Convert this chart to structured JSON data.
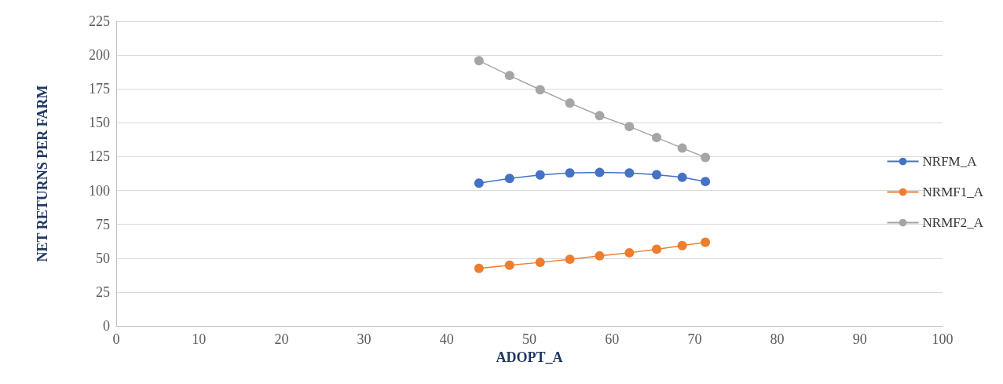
{
  "chart_data": {
    "type": "line",
    "xlabel": "ADOPT_A",
    "ylabel": "NET RETURNS PER FARM",
    "x": [
      43.9,
      47.6,
      51.3,
      54.9,
      58.5,
      62.1,
      65.4,
      68.5,
      71.3
    ],
    "series": [
      {
        "name": "NRFM_A",
        "color": "#4472c4",
        "values": [
          105.4,
          108.9,
          111.5,
          112.9,
          113.3,
          112.9,
          111.6,
          109.7,
          106.6
        ]
      },
      {
        "name": "NRMF1_A",
        "color": "#ed7d31",
        "values": [
          42.5,
          44.8,
          46.9,
          49.2,
          51.7,
          54.0,
          56.6,
          59.3,
          61.8
        ]
      },
      {
        "name": "NRMF2_A",
        "color": "#a5a5a5",
        "values": [
          195.8,
          184.9,
          174.4,
          164.5,
          155.3,
          147.2,
          139.1,
          131.3,
          124.4
        ]
      }
    ],
    "xlim": [
      0,
      100
    ],
    "xticks": [
      0,
      10,
      20,
      30,
      40,
      50,
      60,
      70,
      80,
      90,
      100
    ],
    "ylim": [
      0,
      225
    ],
    "yticks": [
      0,
      25,
      50,
      75,
      100,
      125,
      150,
      175,
      200,
      225
    ],
    "grid": "y",
    "legend": "right",
    "marker": "circle",
    "line_style": "solid"
  }
}
